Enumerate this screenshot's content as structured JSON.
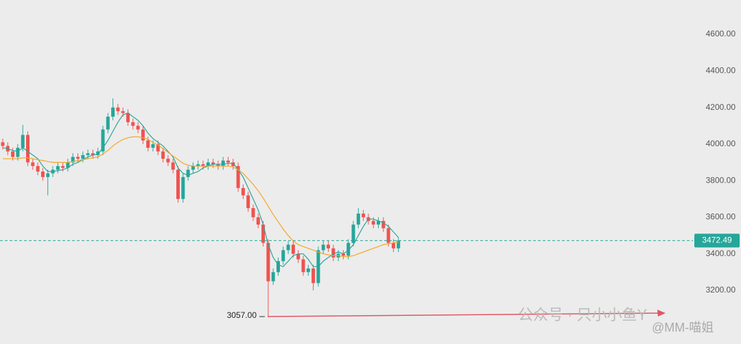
{
  "chart_data": {
    "type": "candlestick",
    "open": [
      4010,
      3990,
      3960,
      3930,
      3980,
      4050,
      3900,
      3880,
      3850,
      3820,
      3840,
      3860,
      3880,
      3870,
      3900,
      3930,
      3920,
      3940,
      3950,
      3940,
      3960,
      4080,
      4150,
      4200,
      4180,
      4170,
      4120,
      4100,
      4080,
      4020,
      3980,
      4000,
      3960,
      3920,
      3900,
      3860,
      3700,
      3820,
      3860,
      3880,
      3890,
      3880,
      3900,
      3890,
      3880,
      3910,
      3900,
      3880,
      3760,
      3720,
      3650,
      3600,
      3560,
      3460,
      3250,
      3300,
      3360,
      3420,
      3450,
      3400,
      3370,
      3300,
      3320,
      3240,
      3420,
      3450,
      3430,
      3380,
      3400,
      3390,
      3460,
      3560,
      3620,
      3600,
      3580,
      3560,
      3580,
      3540,
      3460,
      3430
    ],
    "high": [
      4030,
      4010,
      3980,
      4000,
      4105,
      4070,
      3920,
      3900,
      3870,
      3860,
      3880,
      3900,
      3900,
      3920,
      3950,
      3950,
      3960,
      3970,
      3970,
      3980,
      4100,
      4170,
      4250,
      4220,
      4200,
      4190,
      4140,
      4120,
      4100,
      4040,
      4020,
      4020,
      3980,
      3940,
      3920,
      3880,
      3840,
      3880,
      3900,
      3910,
      3910,
      3920,
      3920,
      3910,
      3930,
      3930,
      3920,
      3900,
      3780,
      3740,
      3670,
      3620,
      3580,
      3480,
      3320,
      3380,
      3440,
      3470,
      3470,
      3420,
      3390,
      3340,
      3340,
      3440,
      3470,
      3470,
      3450,
      3420,
      3420,
      3480,
      3580,
      3650,
      3640,
      3620,
      3600,
      3600,
      3600,
      3560,
      3480,
      3490
    ],
    "low": [
      3970,
      3940,
      3910,
      3910,
      3960,
      3880,
      3860,
      3830,
      3800,
      3720,
      3820,
      3840,
      3850,
      3850,
      3880,
      3900,
      3900,
      3920,
      3920,
      3920,
      3940,
      4060,
      4130,
      4160,
      4150,
      4100,
      4080,
      4060,
      4000,
      3960,
      3960,
      3940,
      3900,
      3880,
      3840,
      3680,
      3680,
      3800,
      3840,
      3860,
      3860,
      3860,
      3870,
      3860,
      3860,
      3880,
      3860,
      3740,
      3700,
      3630,
      3580,
      3540,
      3440,
      3057,
      3230,
      3280,
      3340,
      3400,
      3380,
      3350,
      3280,
      3280,
      3200,
      3220,
      3400,
      3410,
      3360,
      3360,
      3370,
      3370,
      3440,
      3540,
      3580,
      3560,
      3540,
      3540,
      3520,
      3440,
      3410,
      3410
    ],
    "close": [
      3990,
      3960,
      3930,
      3980,
      4050,
      3900,
      3880,
      3850,
      3820,
      3840,
      3860,
      3880,
      3870,
      3900,
      3930,
      3920,
      3940,
      3950,
      3940,
      3960,
      4080,
      4150,
      4200,
      4180,
      4170,
      4120,
      4100,
      4080,
      4020,
      3980,
      4000,
      3960,
      3920,
      3900,
      3860,
      3700,
      3820,
      3860,
      3880,
      3890,
      3880,
      3900,
      3890,
      3880,
      3910,
      3900,
      3880,
      3760,
      3720,
      3650,
      3600,
      3560,
      3460,
      3250,
      3300,
      3360,
      3420,
      3450,
      3400,
      3370,
      3300,
      3320,
      3240,
      3420,
      3450,
      3430,
      3380,
      3400,
      3390,
      3460,
      3560,
      3620,
      3600,
      3580,
      3560,
      3580,
      3540,
      3460,
      3430,
      3472.49
    ],
    "up_color": "#26a69a",
    "down_color": "#ef5350",
    "series": [
      {
        "color": "#26a69a",
        "values": [
          3980,
          3975,
          3965,
          3960,
          3980,
          3960,
          3940,
          3920,
          3880,
          3850,
          3850,
          3855,
          3860,
          3870,
          3890,
          3900,
          3915,
          3930,
          3940,
          3945,
          3980,
          4020,
          4070,
          4120,
          4160,
          4170,
          4150,
          4130,
          4100,
          4060,
          4030,
          4010,
          3990,
          3960,
          3930,
          3870,
          3840,
          3830,
          3840,
          3850,
          3870,
          3880,
          3890,
          3890,
          3890,
          3895,
          3895,
          3860,
          3820,
          3760,
          3700,
          3640,
          3560,
          3450,
          3380,
          3340,
          3330,
          3360,
          3390,
          3400,
          3400,
          3370,
          3330,
          3330,
          3360,
          3380,
          3400,
          3410,
          3400,
          3420,
          3450,
          3500,
          3550,
          3590,
          3590,
          3580,
          3570,
          3550,
          3520,
          3490
        ]
      },
      {
        "color": "#f5a623",
        "values": [
          3920,
          3920,
          3920,
          3920,
          3925,
          3925,
          3920,
          3915,
          3910,
          3905,
          3900,
          3900,
          3900,
          3900,
          3905,
          3910,
          3915,
          3920,
          3925,
          3930,
          3945,
          3965,
          3990,
          4010,
          4025,
          4035,
          4040,
          4040,
          4035,
          4025,
          4010,
          3995,
          3975,
          3955,
          3935,
          3915,
          3895,
          3885,
          3880,
          3880,
          3880,
          3880,
          3880,
          3880,
          3880,
          3880,
          3875,
          3860,
          3840,
          3810,
          3780,
          3745,
          3705,
          3660,
          3615,
          3575,
          3535,
          3500,
          3470,
          3450,
          3440,
          3430,
          3420,
          3410,
          3400,
          3395,
          3390,
          3390,
          3385,
          3385,
          3390,
          3400,
          3410,
          3420,
          3430,
          3440,
          3450,
          3455,
          3460,
          3465
        ]
      }
    ],
    "last_price": 3472.49,
    "low_annotation": {
      "value": 3057,
      "label": "3057.00"
    },
    "ylim": [
      2907,
      4788
    ],
    "yticks": [
      {
        "value": 3200,
        "label": "3200.00"
      },
      {
        "value": 3400,
        "label": "3400.00"
      },
      {
        "value": 3600,
        "label": "3600.00"
      },
      {
        "value": 3800,
        "label": "3800.00"
      },
      {
        "value": 4000,
        "label": "4000.00"
      },
      {
        "value": 4200,
        "label": "4200.00"
      },
      {
        "value": 4400,
        "label": "4400.00"
      },
      {
        "value": 4600,
        "label": "4600.00"
      }
    ],
    "watermark": [
      "公众号 · 只小小鱼Y",
      "@MM-喵姐"
    ]
  }
}
